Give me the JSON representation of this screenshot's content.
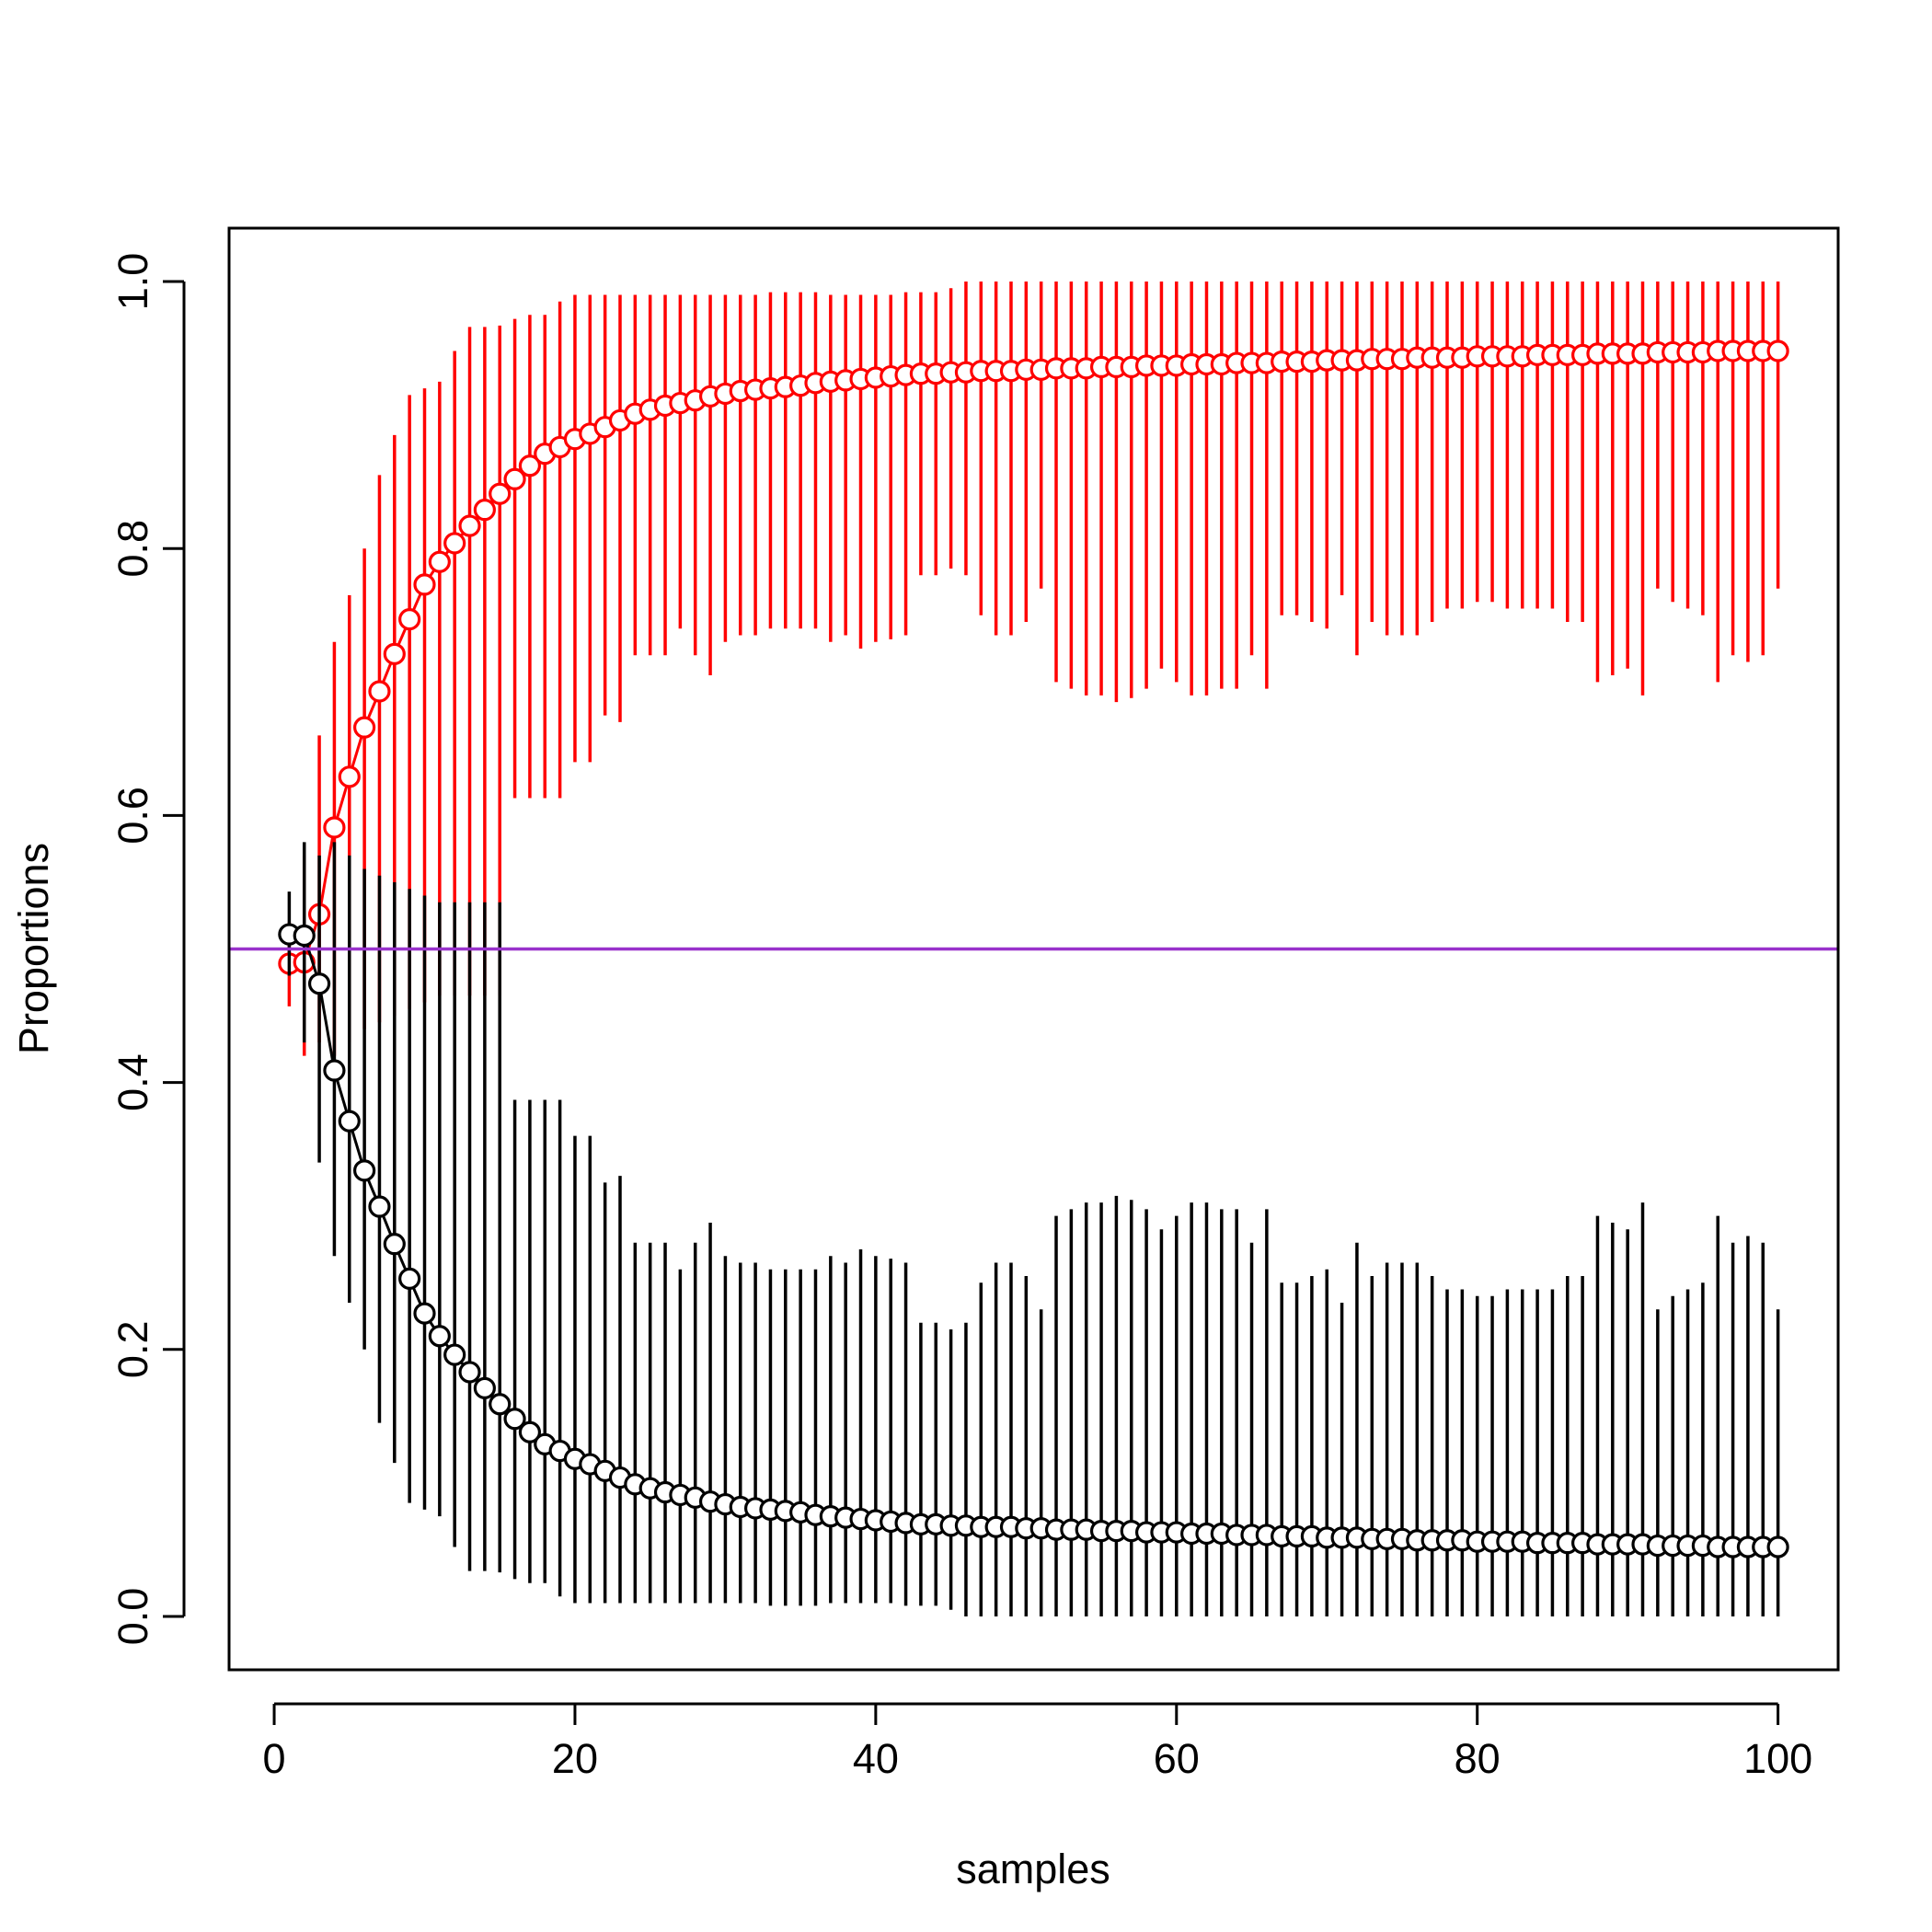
{
  "chart_data": {
    "type": "scatter",
    "title": "",
    "xlabel": "samples",
    "ylabel": "Proportions",
    "xlim": [
      -3,
      104
    ],
    "ylim": [
      -0.04,
      1.04
    ],
    "xticks": [
      0,
      20,
      40,
      60,
      80,
      100
    ],
    "xtick_labels": [
      "0",
      "20",
      "40",
      "60",
      "80",
      "100"
    ],
    "yticks": [
      0.0,
      0.2,
      0.4,
      0.6,
      0.8,
      1.0
    ],
    "ytick_labels": [
      "0.0",
      "0.2",
      "0.4",
      "0.6",
      "0.8",
      "1.0"
    ],
    "grid": false,
    "legend": "none",
    "hline": {
      "y": 0.5,
      "color": "#9932CC"
    },
    "x": [
      1,
      2,
      3,
      4,
      5,
      6,
      7,
      8,
      9,
      10,
      11,
      12,
      13,
      14,
      15,
      16,
      17,
      18,
      19,
      20,
      21,
      22,
      23,
      24,
      25,
      26,
      27,
      28,
      29,
      30,
      31,
      32,
      33,
      34,
      35,
      36,
      37,
      38,
      39,
      40,
      41,
      42,
      43,
      44,
      45,
      46,
      47,
      48,
      49,
      50,
      51,
      52,
      53,
      54,
      55,
      56,
      57,
      58,
      59,
      60,
      61,
      62,
      63,
      64,
      65,
      66,
      67,
      68,
      69,
      70,
      71,
      72,
      73,
      74,
      75,
      76,
      77,
      78,
      79,
      80,
      81,
      82,
      83,
      84,
      85,
      86,
      87,
      88,
      89,
      90,
      91,
      92,
      93,
      94,
      95,
      96,
      97,
      98,
      99,
      100
    ],
    "series": [
      {
        "color": "#FF0000",
        "values": [
          0.489,
          0.49,
          0.526,
          0.591,
          0.629,
          0.666,
          0.693,
          0.721,
          0.747,
          0.773,
          0.79,
          0.804,
          0.817,
          0.829,
          0.841,
          0.852,
          0.862,
          0.871,
          0.876,
          0.882,
          0.886,
          0.891,
          0.896,
          0.901,
          0.904,
          0.907,
          0.909,
          0.911,
          0.914,
          0.916,
          0.918,
          0.919,
          0.92,
          0.921,
          0.922,
          0.924,
          0.925,
          0.926,
          0.927,
          0.928,
          0.929,
          0.93,
          0.931,
          0.931,
          0.932,
          0.932,
          0.933,
          0.933,
          0.933,
          0.934,
          0.934,
          0.935,
          0.935,
          0.935,
          0.936,
          0.936,
          0.936,
          0.937,
          0.937,
          0.937,
          0.938,
          0.938,
          0.938,
          0.939,
          0.939,
          0.939,
          0.94,
          0.94,
          0.94,
          0.941,
          0.941,
          0.941,
          0.942,
          0.942,
          0.942,
          0.943,
          0.943,
          0.943,
          0.943,
          0.944,
          0.944,
          0.944,
          0.944,
          0.945,
          0.945,
          0.945,
          0.945,
          0.946,
          0.946,
          0.946,
          0.946,
          0.947,
          0.947,
          0.947,
          0.947,
          0.948,
          0.948,
          0.948,
          0.948,
          0.948
        ],
        "lower": [
          0.457,
          0.42,
          0.43,
          0.42,
          0.43,
          0.44,
          0.445,
          0.45,
          0.455,
          0.46,
          0.465,
          0.465,
          0.465,
          0.465,
          0.465,
          0.613,
          0.613,
          0.613,
          0.613,
          0.64,
          0.64,
          0.675,
          0.67,
          0.72,
          0.72,
          0.72,
          0.74,
          0.72,
          0.705,
          0.73,
          0.735,
          0.735,
          0.74,
          0.74,
          0.74,
          0.74,
          0.73,
          0.735,
          0.725,
          0.73,
          0.732,
          0.735,
          0.78,
          0.78,
          0.785,
          0.78,
          0.75,
          0.735,
          0.735,
          0.745,
          0.77,
          0.7,
          0.695,
          0.69,
          0.69,
          0.685,
          0.688,
          0.695,
          0.71,
          0.7,
          0.69,
          0.69,
          0.695,
          0.695,
          0.72,
          0.695,
          0.75,
          0.75,
          0.745,
          0.74,
          0.765,
          0.72,
          0.745,
          0.735,
          0.735,
          0.735,
          0.745,
          0.755,
          0.755,
          0.76,
          0.76,
          0.755,
          0.755,
          0.755,
          0.755,
          0.745,
          0.745,
          0.7,
          0.705,
          0.71,
          0.69,
          0.77,
          0.76,
          0.755,
          0.75,
          0.7,
          0.72,
          0.715,
          0.72,
          0.77
        ],
        "upper": [
          0.52,
          0.57,
          0.66,
          0.73,
          0.765,
          0.8,
          0.855,
          0.885,
          0.915,
          0.92,
          0.925,
          0.948,
          0.966,
          0.966,
          0.967,
          0.972,
          0.975,
          0.975,
          0.985,
          0.99,
          0.99,
          0.99,
          0.99,
          0.99,
          0.99,
          0.99,
          0.99,
          0.99,
          0.99,
          0.99,
          0.99,
          0.99,
          0.992,
          0.992,
          0.992,
          0.992,
          0.99,
          0.99,
          0.99,
          0.99,
          0.99,
          0.992,
          0.992,
          0.992,
          0.995,
          1.0,
          1.0,
          1.0,
          1.0,
          1.0,
          1.0,
          1.0,
          1.0,
          1.0,
          1.0,
          1.0,
          1.0,
          1.0,
          1.0,
          1.0,
          1.0,
          1.0,
          1.0,
          1.0,
          1.0,
          1.0,
          1.0,
          1.0,
          1.0,
          1.0,
          1.0,
          1.0,
          1.0,
          1.0,
          1.0,
          1.0,
          1.0,
          1.0,
          1.0,
          1.0,
          1.0,
          1.0,
          1.0,
          1.0,
          1.0,
          1.0,
          1.0,
          1.0,
          1.0,
          1.0,
          1.0,
          1.0,
          1.0,
          1.0,
          1.0,
          1.0,
          1.0,
          1.0,
          1.0,
          1.0
        ]
      },
      {
        "color": "#000000",
        "values": [
          0.511,
          0.51,
          0.474,
          0.409,
          0.371,
          0.334,
          0.307,
          0.279,
          0.253,
          0.227,
          0.21,
          0.196,
          0.183,
          0.171,
          0.159,
          0.148,
          0.138,
          0.129,
          0.124,
          0.118,
          0.114,
          0.109,
          0.104,
          0.099,
          0.096,
          0.093,
          0.091,
          0.089,
          0.086,
          0.084,
          0.082,
          0.081,
          0.08,
          0.079,
          0.078,
          0.076,
          0.075,
          0.074,
          0.073,
          0.072,
          0.071,
          0.07,
          0.069,
          0.069,
          0.068,
          0.068,
          0.067,
          0.067,
          0.067,
          0.066,
          0.066,
          0.065,
          0.065,
          0.065,
          0.064,
          0.064,
          0.064,
          0.063,
          0.063,
          0.063,
          0.062,
          0.062,
          0.062,
          0.061,
          0.061,
          0.061,
          0.06,
          0.06,
          0.06,
          0.059,
          0.059,
          0.059,
          0.058,
          0.058,
          0.058,
          0.057,
          0.057,
          0.057,
          0.057,
          0.056,
          0.056,
          0.056,
          0.056,
          0.055,
          0.055,
          0.055,
          0.055,
          0.054,
          0.054,
          0.054,
          0.054,
          0.053,
          0.053,
          0.053,
          0.053,
          0.052,
          0.052,
          0.052,
          0.052,
          0.052
        ],
        "lower": [
          0.48,
          0.43,
          0.34,
          0.27,
          0.235,
          0.2,
          0.145,
          0.115,
          0.085,
          0.08,
          0.075,
          0.052,
          0.034,
          0.034,
          0.033,
          0.028,
          0.025,
          0.025,
          0.015,
          0.01,
          0.01,
          0.01,
          0.01,
          0.01,
          0.01,
          0.01,
          0.01,
          0.01,
          0.01,
          0.01,
          0.01,
          0.01,
          0.008,
          0.008,
          0.008,
          0.008,
          0.01,
          0.01,
          0.01,
          0.01,
          0.01,
          0.008,
          0.008,
          0.008,
          0.005,
          0.0,
          0.0,
          0.0,
          0.0,
          0.0,
          0.0,
          0.0,
          0.0,
          0.0,
          0.0,
          0.0,
          0.0,
          0.0,
          0.0,
          0.0,
          0.0,
          0.0,
          0.0,
          0.0,
          0.0,
          0.0,
          0.0,
          0.0,
          0.0,
          0.0,
          0.0,
          0.0,
          0.0,
          0.0,
          0.0,
          0.0,
          0.0,
          0.0,
          0.0,
          0.0,
          0.0,
          0.0,
          0.0,
          0.0,
          0.0,
          0.0,
          0.0,
          0.0,
          0.0,
          0.0,
          0.0,
          0.0,
          0.0,
          0.0,
          0.0,
          0.0,
          0.0,
          0.0,
          0.0,
          0.0
        ],
        "upper": [
          0.543,
          0.58,
          0.57,
          0.58,
          0.57,
          0.56,
          0.555,
          0.55,
          0.545,
          0.54,
          0.535,
          0.535,
          0.535,
          0.535,
          0.535,
          0.387,
          0.387,
          0.387,
          0.387,
          0.36,
          0.36,
          0.325,
          0.33,
          0.28,
          0.28,
          0.28,
          0.26,
          0.28,
          0.295,
          0.27,
          0.265,
          0.265,
          0.26,
          0.26,
          0.26,
          0.26,
          0.27,
          0.265,
          0.275,
          0.27,
          0.268,
          0.265,
          0.22,
          0.22,
          0.215,
          0.22,
          0.25,
          0.265,
          0.265,
          0.255,
          0.23,
          0.3,
          0.305,
          0.31,
          0.31,
          0.315,
          0.312,
          0.305,
          0.29,
          0.3,
          0.31,
          0.31,
          0.305,
          0.305,
          0.28,
          0.305,
          0.25,
          0.25,
          0.255,
          0.26,
          0.235,
          0.28,
          0.255,
          0.265,
          0.265,
          0.265,
          0.255,
          0.245,
          0.245,
          0.24,
          0.24,
          0.245,
          0.245,
          0.245,
          0.245,
          0.255,
          0.255,
          0.3,
          0.295,
          0.29,
          0.31,
          0.23,
          0.24,
          0.245,
          0.25,
          0.3,
          0.28,
          0.285,
          0.28,
          0.23
        ]
      }
    ]
  }
}
